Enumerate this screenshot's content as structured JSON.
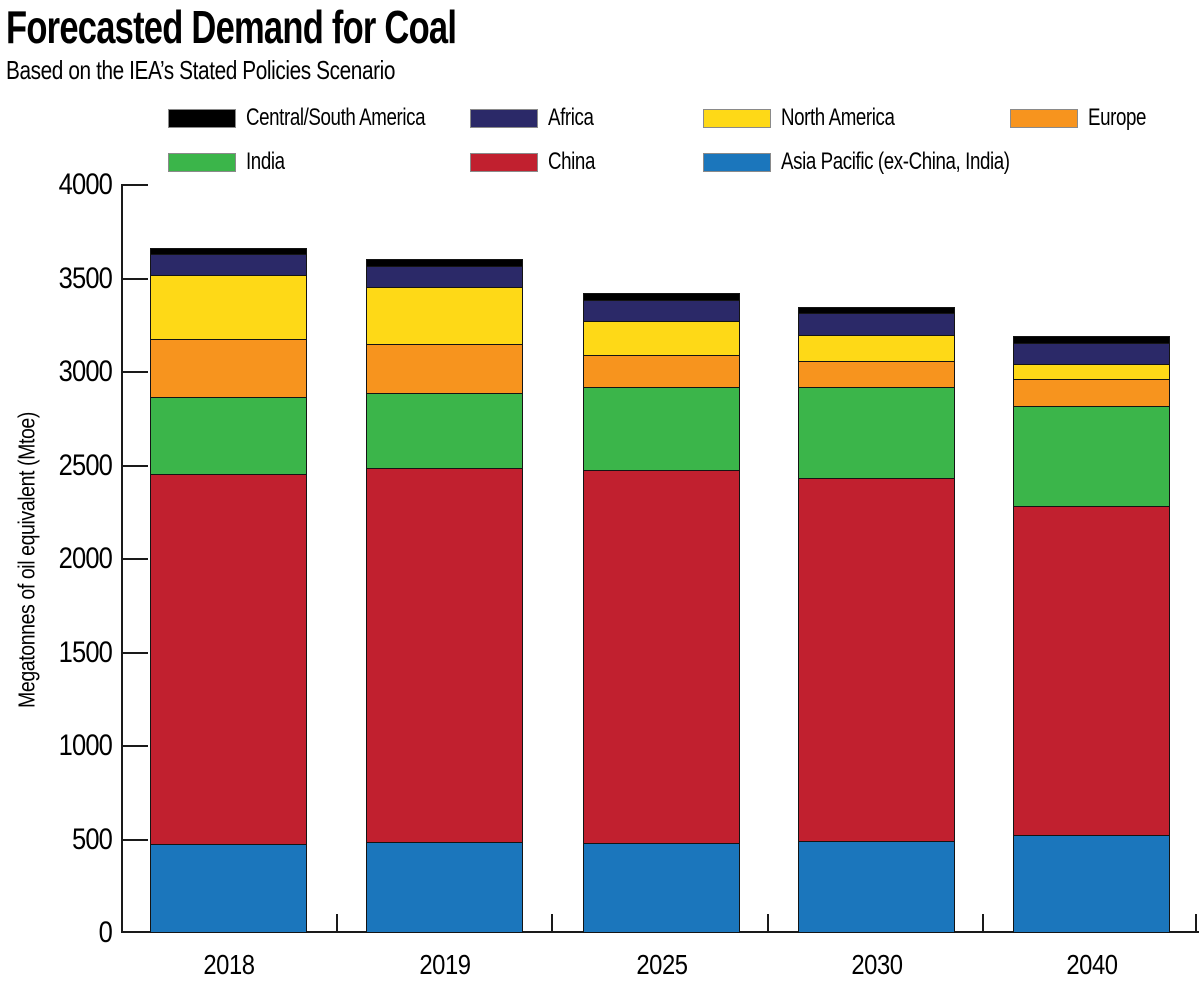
{
  "header": {
    "title": "Forecasted Demand for Coal",
    "subtitle": "Based on the IEA’s Stated Policies Scenario"
  },
  "yaxis": {
    "label": "Megatonnes of oil equivalent (Mtoe)",
    "tick_labels": [
      "0",
      "500",
      "1000",
      "1500",
      "2000",
      "2500",
      "3000",
      "3500",
      "4000"
    ]
  },
  "xaxis": {
    "tick_labels": [
      "2018",
      "2019",
      "2025",
      "2030",
      "2040"
    ]
  },
  "legend": {
    "rows": [
      [
        "Central/South America",
        "Africa",
        "North America",
        "Europe"
      ],
      [
        "India",
        "China",
        "Asia Pacific (ex-China, India)"
      ]
    ]
  },
  "chart_data": {
    "type": "bar",
    "stacked": true,
    "title": "Forecasted Demand for Coal",
    "subtitle": "Based on the IEA’s Stated Policies Scenario",
    "xlabel": "",
    "ylabel": "Megatonnes of oil equivalent (Mtoe)",
    "ylim": [
      0,
      4000
    ],
    "ytick_interval": 500,
    "grid": false,
    "legend_position": "top",
    "categories": [
      "2018",
      "2019",
      "2025",
      "2030",
      "2040"
    ],
    "series": [
      {
        "name": "Asia Pacific (ex-China, India)",
        "color": "#1b76bc",
        "values": [
          470,
          480,
          475,
          485,
          520
        ]
      },
      {
        "name": "China",
        "color": "#c1202f",
        "values": [
          1980,
          2000,
          1995,
          1943,
          1758
        ]
      },
      {
        "name": "India",
        "color": "#3bb54a",
        "values": [
          410,
          402,
          444,
          487,
          535
        ]
      },
      {
        "name": "Europe",
        "color": "#f7941e",
        "values": [
          310,
          262,
          171,
          139,
          144
        ]
      },
      {
        "name": "North America",
        "color": "#fed917",
        "values": [
          342,
          305,
          182,
          139,
          81
        ]
      },
      {
        "name": "Africa",
        "color": "#2b2968",
        "values": [
          112,
          112,
          112,
          117,
          112
        ]
      },
      {
        "name": "Central/South America",
        "color": "#000000",
        "values": [
          32,
          37,
          37,
          32,
          37
        ]
      }
    ],
    "totals": [
      3656,
      3598,
      3416,
      3342,
      3187
    ],
    "stack_order_note": "series listed bottom-to-top"
  }
}
